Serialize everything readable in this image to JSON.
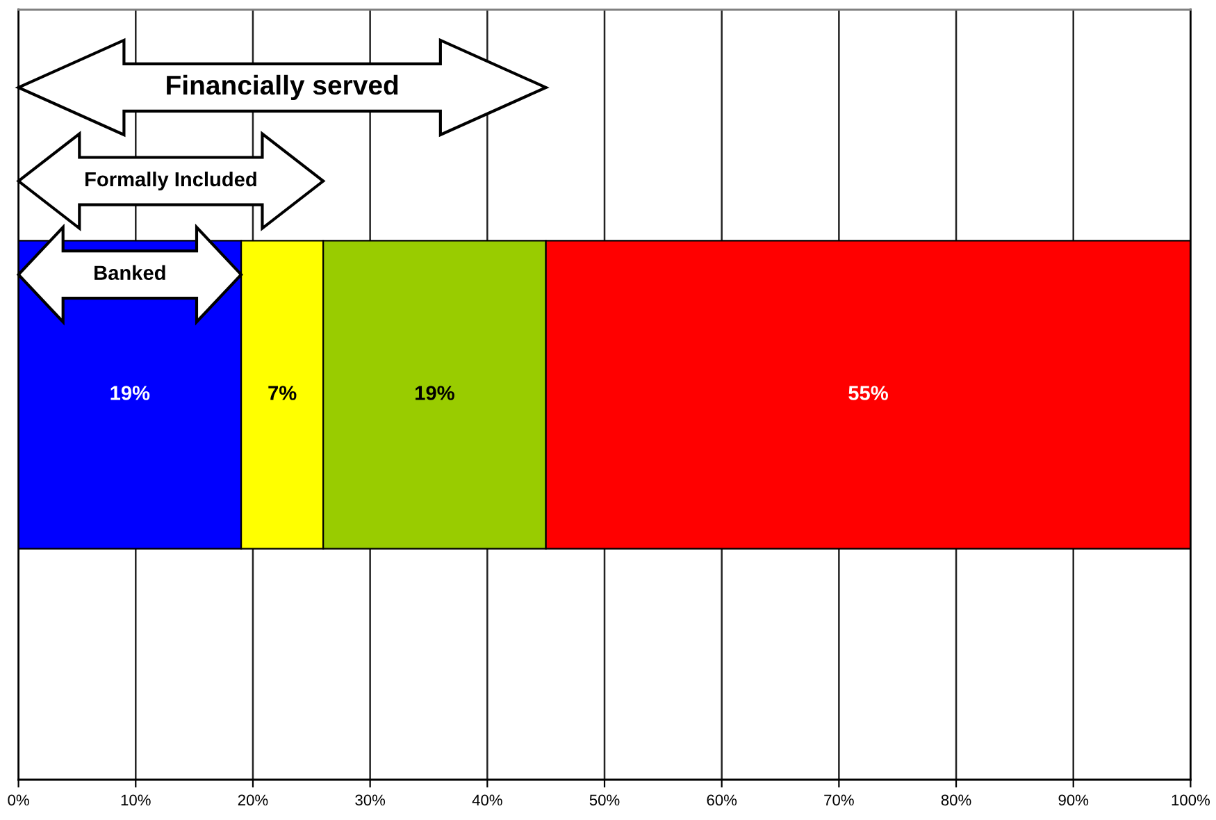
{
  "chart_data": {
    "type": "bar",
    "orientation": "horizontal",
    "stacked": true,
    "categories": [
      null
    ],
    "series": [
      {
        "color": "#0000ff",
        "values": [
          19
        ],
        "value_labels": [
          "19%"
        ]
      },
      {
        "color": "#ffff00",
        "values": [
          7
        ],
        "value_labels": [
          "7%"
        ]
      },
      {
        "color": "#99cc00",
        "values": [
          19
        ],
        "value_labels": [
          "19%"
        ]
      },
      {
        "color": "#ff0000",
        "values": [
          55
        ],
        "value_labels": [
          "55%"
        ]
      }
    ],
    "xlim": [
      0,
      100
    ],
    "xticks": [
      {
        "value": 0,
        "label": "0%"
      },
      {
        "value": 10,
        "label": "10%"
      },
      {
        "value": 20,
        "label": "20%"
      },
      {
        "value": 30,
        "label": "30%"
      },
      {
        "value": 40,
        "label": "40%"
      },
      {
        "value": 50,
        "label": "50%"
      },
      {
        "value": 60,
        "label": "60%"
      },
      {
        "value": 70,
        "label": "70%"
      },
      {
        "value": 80,
        "label": "80%"
      },
      {
        "value": 90,
        "label": "90%"
      },
      {
        "value": 100,
        "label": "100%"
      }
    ],
    "grid": "x",
    "tick_labels": "x",
    "annotations": [
      "Financially served",
      "Formally Included",
      "Banked"
    ]
  }
}
